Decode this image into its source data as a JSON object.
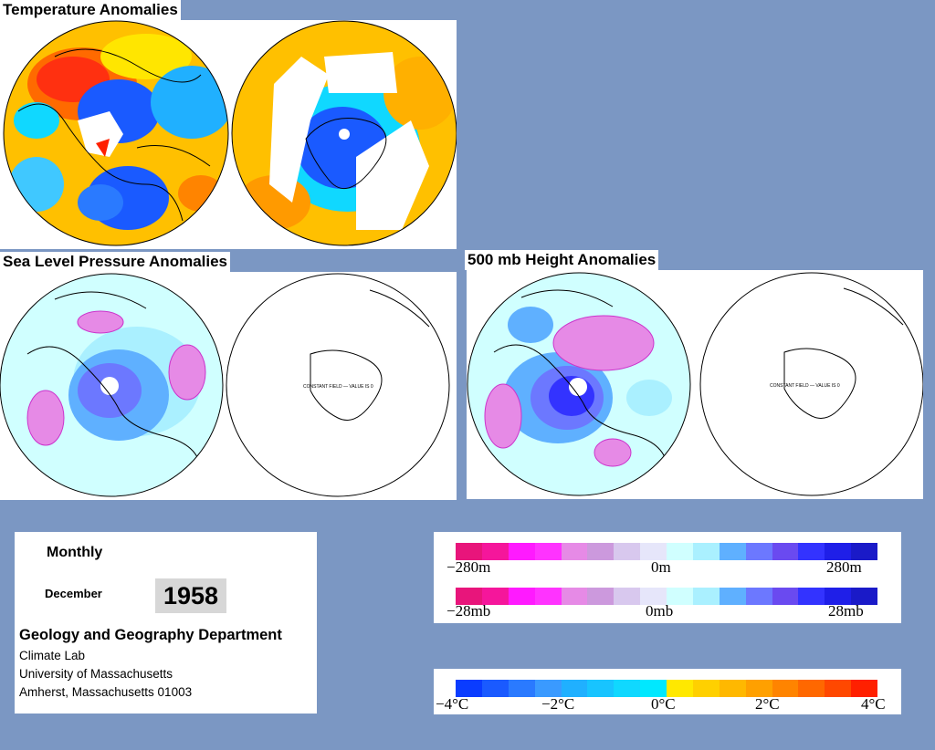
{
  "titles": {
    "temperature": "Temperature Anomalies",
    "slp": "Sea Level Pressure Anomalies",
    "height": "500 mb Height Anomalies"
  },
  "globe_notes": {
    "constant_field": "CONSTANT FIELD — VALUE IS 0"
  },
  "info": {
    "period": "Monthly",
    "month": "December",
    "year": "1958",
    "department": "Geology and Geography Department",
    "line1": "Climate Lab",
    "line2": "University of Massachusetts",
    "line3": "Amherst, Massachusetts 01003"
  },
  "legend_height": {
    "left": "−280m",
    "center": "0m",
    "right": "280m",
    "colors": [
      "#e8157b",
      "#f5169b",
      "#ff1aff",
      "#ff33ff",
      "#e68ae6",
      "#cc99dd",
      "#d8c8ee",
      "#e6e6fa",
      "#d0ffff",
      "#aaf0ff",
      "#5fb0ff",
      "#6c78ff",
      "#6a4af0",
      "#3333ff",
      "#1f1fe8",
      "#1a1ac8"
    ]
  },
  "legend_pressure": {
    "left": "−28mb",
    "center": "0mb",
    "right": "28mb",
    "colors": [
      "#e8157b",
      "#f5169b",
      "#ff1aff",
      "#ff33ff",
      "#e68ae6",
      "#cc99dd",
      "#d8c8ee",
      "#e6e6fa",
      "#d0ffff",
      "#aaf0ff",
      "#5fb0ff",
      "#6c78ff",
      "#6a4af0",
      "#3333ff",
      "#1f1fe8",
      "#1a1ac8"
    ]
  },
  "legend_temp": {
    "l1": "−4°C",
    "l2": "−2°C",
    "l3": "0°C",
    "l4": "2°C",
    "l5": "4°C",
    "colors": [
      "#0a3cff",
      "#1a5aff",
      "#2a7aff",
      "#3a9aff",
      "#20b0ff",
      "#18c4ff",
      "#10d8ff",
      "#00e8ff",
      "#ffe800",
      "#ffd000",
      "#ffb800",
      "#ffa000",
      "#ff8400",
      "#ff6800",
      "#ff4800",
      "#ff2000"
    ]
  }
}
